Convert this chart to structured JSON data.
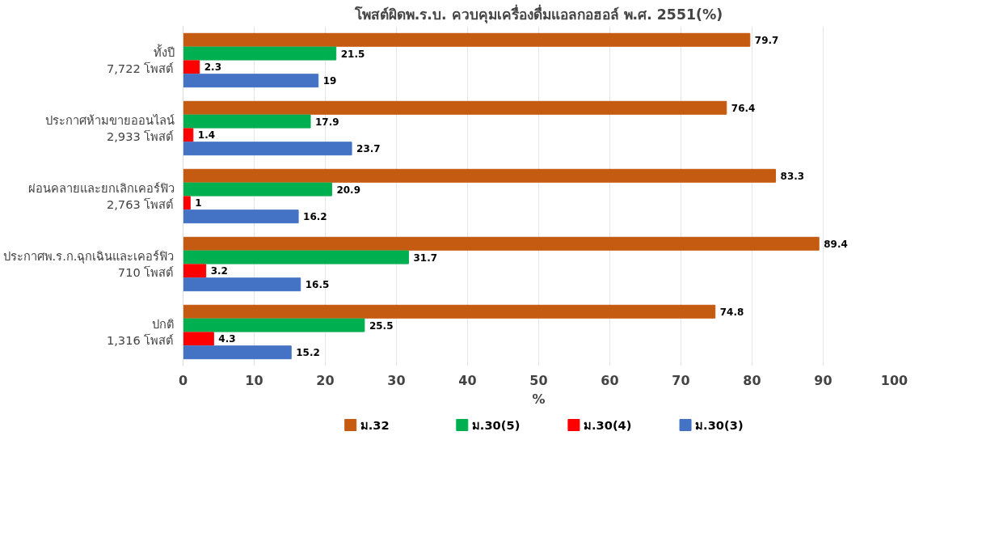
{
  "chart_data": {
    "type": "bar",
    "orientation": "horizontal",
    "title": "โพสต์ผิดพ.ร.บ. ควบคุมเครื่องดื่มแอลกอฮอล์ พ.ศ. 2551(%)",
    "xlabel": "%",
    "categories": [
      "ทั้งปี\n7,722 โพสต์",
      "ประกาศห้ามขายออนไลน์\n2,933 โพสต์",
      "ผ่อนคลายและยกเลิกเคอร์ฟิว\n2,763 โพสต์",
      "ประกาศพ.ร.ก.ฉุกเฉินและเคอร์ฟิว\n710 โพสต์",
      "ปกติ\n1,316 โพสต์"
    ],
    "series": [
      {
        "name": "ม.32",
        "color": "#c55a11",
        "values": [
          79.7,
          76.4,
          83.3,
          89.4,
          74.8
        ]
      },
      {
        "name": "ม.30(5)",
        "color": "#00b050",
        "values": [
          21.5,
          17.9,
          20.9,
          31.7,
          25.5
        ]
      },
      {
        "name": "ม.30(4)",
        "color": "#ff0000",
        "values": [
          2.3,
          1.4,
          1,
          3.2,
          4.3
        ]
      },
      {
        "name": "ม.30(3)",
        "color": "#4472c4",
        "values": [
          19,
          23.7,
          16.2,
          16.5,
          15.2
        ]
      }
    ],
    "xlim": [
      0,
      100
    ],
    "xticks": [
      0,
      10,
      20,
      30,
      40,
      50,
      60,
      70,
      80,
      90,
      100
    ],
    "grid": "x",
    "legend": "bottom",
    "data_labels": true
  }
}
